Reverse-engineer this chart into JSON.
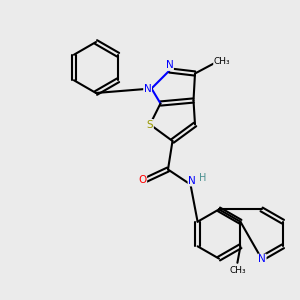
{
  "bg_color": "#ebebeb",
  "bond_color": "#000000",
  "bond_width": 1.5,
  "atom_colors": {
    "N": "#0000ff",
    "O": "#ff0000",
    "S": "#999900",
    "H": "#4a9090",
    "C": "#000000"
  },
  "font_size": 7.5,
  "fig_size": [
    3.0,
    3.0
  ],
  "dpi": 100
}
